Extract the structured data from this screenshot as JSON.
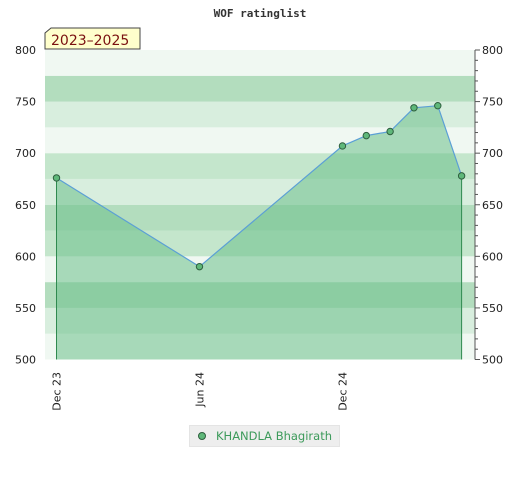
{
  "chart_data": {
    "type": "area",
    "title": "WOF ratinglist",
    "period_label": "2023–2025",
    "ylim": [
      500,
      800
    ],
    "yticks": [
      500,
      550,
      600,
      650,
      700,
      750,
      800
    ],
    "xtick_labels": [
      "Dec 23",
      "Jun 24",
      "Dec 24"
    ],
    "grid": true,
    "legend_position": "bottom-center",
    "colors": {
      "line": "#5b9fd6",
      "fill": "#6cc08a",
      "marker": "#5fb87a",
      "marker_stroke": "#2e5f3e",
      "badge_bg": "#ffffcc",
      "badge_text": "#7a1010"
    },
    "series": [
      {
        "name": "KHANDLA Bhagirath",
        "points": [
          {
            "x": "2023-12",
            "y": 676
          },
          {
            "x": "2024-06",
            "y": 590
          },
          {
            "x": "2024-12",
            "y": 707
          },
          {
            "x": "2025-01",
            "y": 717
          },
          {
            "x": "2025-02",
            "y": 721
          },
          {
            "x": "2025-03",
            "y": 744
          },
          {
            "x": "2025-04",
            "y": 746
          },
          {
            "x": "2025-05",
            "y": 678
          }
        ]
      }
    ]
  },
  "legend": {
    "items": [
      {
        "label": "KHANDLA Bhagirath",
        "color": "#5fb87a"
      }
    ]
  }
}
